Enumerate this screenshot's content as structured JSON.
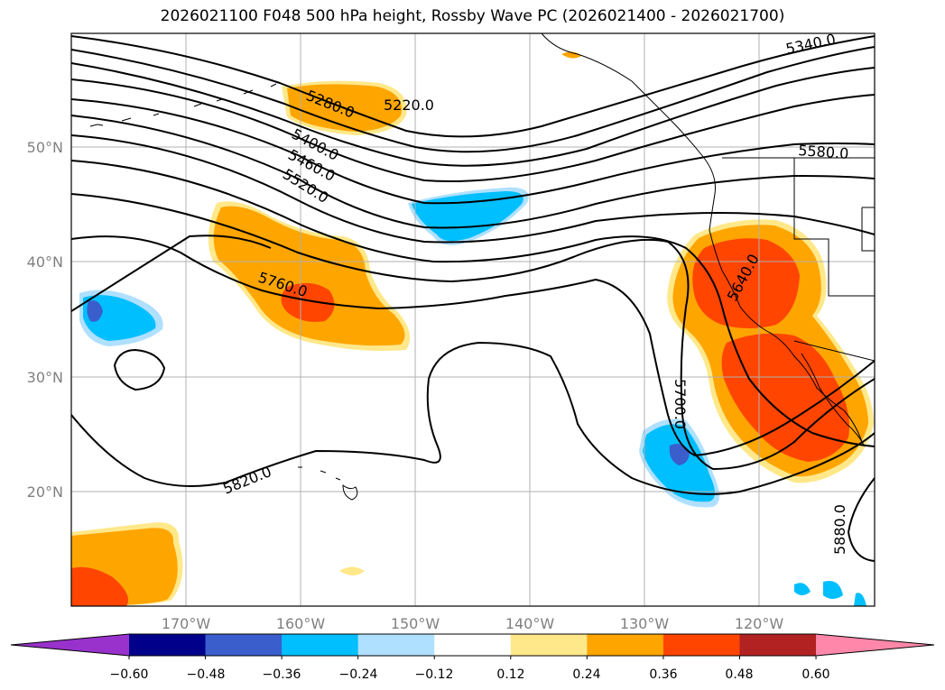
{
  "title": "2026021100 F048 500 hPa height, Rossby Wave PC (2026021400 - 2026021700)",
  "map": {
    "lat_labels": [
      "50°N",
      "40°N",
      "30°N",
      "20°N"
    ],
    "lon_labels": [
      "170°W",
      "160°W",
      "150°W",
      "140°W",
      "130°W",
      "120°W"
    ],
    "contour_labels": [
      "5220.0",
      "5280.0",
      "5340.0",
      "5400.0",
      "5460.0",
      "5520.0",
      "5580.0",
      "5640.0",
      "5700.0",
      "5760.0",
      "5820.0",
      "5880.0"
    ]
  },
  "colorbar": {
    "ticks": [
      "−0.60",
      "−0.48",
      "−0.36",
      "−0.24",
      "−0.12",
      "0.12",
      "0.24",
      "0.36",
      "0.48",
      "0.60"
    ],
    "colors": [
      "#9932cc",
      "#00008b",
      "#3a5fcd",
      "#00bfff",
      "#b0e0ff",
      "#ffffff",
      "#ffe88a",
      "#ffa500",
      "#ff4500",
      "#b22222",
      "#ff88aa"
    ]
  }
}
